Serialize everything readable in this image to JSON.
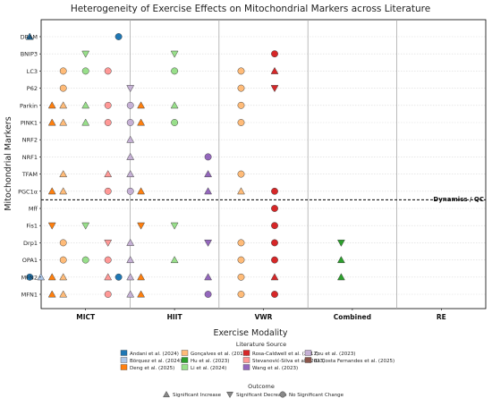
{
  "chart_data": {
    "type": "scatter",
    "title": "Heterogeneity of Exercise Effects on Mitochondrial Markers across Literature",
    "xlabel": "Exercise Modality",
    "ylabel": "Mitochondrial Markers",
    "modalities": [
      "MICT",
      "HIIT",
      "VWR",
      "Combined",
      "RE"
    ],
    "markers": [
      "DRAM",
      "BNIP3",
      "LC3",
      "P62",
      "Parkin",
      "PINK1",
      "NRF2",
      "NRF1",
      "TFAM",
      "PGC1α",
      "Mff",
      "Fis1",
      "Drp1",
      "OPA1",
      "MFN2",
      "MFN1"
    ],
    "divider_label": "Dynamics / QC",
    "studies": [
      {
        "name": "Andani et al. (2024)",
        "color": "#1f77b4"
      },
      {
        "name": "Börquez et al. (2024)",
        "color": "#aec7e8"
      },
      {
        "name": "Deng et al. (2025)",
        "color": "#ff7f0e"
      },
      {
        "name": "Gonçalves et al. (2016)",
        "color": "#ffbb78"
      },
      {
        "name": "Hu et al. (2023)",
        "color": "#2ca02c"
      },
      {
        "name": "Li et al. (2024)",
        "color": "#98df8a"
      },
      {
        "name": "Rosa-Caldwell et al. (2017)",
        "color": "#d62728"
      },
      {
        "name": "Stevanović-Silva et al. (2023)",
        "color": "#ff9896"
      },
      {
        "name": "Wang et al. (2023)",
        "color": "#9467bd"
      },
      {
        "name": "Zou et al. (2023)",
        "color": "#c5b0d5"
      },
      {
        "name": "da Costa Fernandes et al. (2025)",
        "color": "#8c564b"
      }
    ],
    "legend_title": "Literature Source",
    "outcome_title": "Outcome",
    "outcomes": [
      "Significant Increase",
      "Significant Decrease",
      "No Significant Change"
    ],
    "points": [
      {
        "marker": "DRAM",
        "modality": "MICT",
        "study": "Andani et al. (2024)",
        "outcome": "Significant Increase"
      },
      {
        "marker": "DRAM",
        "modality": "HIIT",
        "study": "Andani et al. (2024)",
        "outcome": "No Significant Change"
      },
      {
        "marker": "BNIP3",
        "modality": "MICT",
        "study": "Li et al. (2024)",
        "outcome": "Significant Decrease"
      },
      {
        "marker": "BNIP3",
        "modality": "HIIT",
        "study": "Li et al. (2024)",
        "outcome": "Significant Decrease"
      },
      {
        "marker": "BNIP3",
        "modality": "VWR",
        "study": "Rosa-Caldwell et al. (2017)",
        "outcome": "No Significant Change"
      },
      {
        "marker": "LC3",
        "modality": "MICT",
        "study": "Gonçalves et al. (2016)",
        "outcome": "No Significant Change"
      },
      {
        "marker": "LC3",
        "modality": "MICT",
        "study": "Li et al. (2024)",
        "outcome": "No Significant Change"
      },
      {
        "marker": "LC3",
        "modality": "MICT",
        "study": "Stevanović-Silva et al. (2023)",
        "outcome": "No Significant Change"
      },
      {
        "marker": "LC3",
        "modality": "HIIT",
        "study": "Li et al. (2024)",
        "outcome": "No Significant Change"
      },
      {
        "marker": "LC3",
        "modality": "VWR",
        "study": "Gonçalves et al. (2016)",
        "outcome": "No Significant Change"
      },
      {
        "marker": "LC3",
        "modality": "VWR",
        "study": "Rosa-Caldwell et al. (2017)",
        "outcome": "Significant Increase"
      },
      {
        "marker": "P62",
        "modality": "MICT",
        "study": "Gonçalves et al. (2016)",
        "outcome": "No Significant Change"
      },
      {
        "marker": "P62",
        "modality": "MICT",
        "study": "Zou et al. (2023)",
        "outcome": "Significant Decrease"
      },
      {
        "marker": "P62",
        "modality": "VWR",
        "study": "Gonçalves et al. (2016)",
        "outcome": "No Significant Change"
      },
      {
        "marker": "P62",
        "modality": "VWR",
        "study": "Rosa-Caldwell et al. (2017)",
        "outcome": "Significant Decrease"
      },
      {
        "marker": "Parkin",
        "modality": "MICT",
        "study": "Deng et al. (2025)",
        "outcome": "Significant Increase"
      },
      {
        "marker": "Parkin",
        "modality": "MICT",
        "study": "Gonçalves et al. (2016)",
        "outcome": "Significant Increase"
      },
      {
        "marker": "Parkin",
        "modality": "MICT",
        "study": "Li et al. (2024)",
        "outcome": "Significant Increase"
      },
      {
        "marker": "Parkin",
        "modality": "MICT",
        "study": "Stevanović-Silva et al. (2023)",
        "outcome": "No Significant Change"
      },
      {
        "marker": "Parkin",
        "modality": "MICT",
        "study": "Zou et al. (2023)",
        "outcome": "No Significant Change"
      },
      {
        "marker": "Parkin",
        "modality": "HIIT",
        "study": "Deng et al. (2025)",
        "outcome": "Significant Increase"
      },
      {
        "marker": "Parkin",
        "modality": "HIIT",
        "study": "Li et al. (2024)",
        "outcome": "Significant Increase"
      },
      {
        "marker": "Parkin",
        "modality": "VWR",
        "study": "Gonçalves et al. (2016)",
        "outcome": "No Significant Change"
      },
      {
        "marker": "PINK1",
        "modality": "MICT",
        "study": "Deng et al. (2025)",
        "outcome": "Significant Increase"
      },
      {
        "marker": "PINK1",
        "modality": "MICT",
        "study": "Gonçalves et al. (2016)",
        "outcome": "Significant Increase"
      },
      {
        "marker": "PINK1",
        "modality": "MICT",
        "study": "Li et al. (2024)",
        "outcome": "Significant Increase"
      },
      {
        "marker": "PINK1",
        "modality": "MICT",
        "study": "Stevanović-Silva et al. (2023)",
        "outcome": "No Significant Change"
      },
      {
        "marker": "PINK1",
        "modality": "MICT",
        "study": "Zou et al. (2023)",
        "outcome": "No Significant Change"
      },
      {
        "marker": "PINK1",
        "modality": "HIIT",
        "study": "Deng et al. (2025)",
        "outcome": "Significant Increase"
      },
      {
        "marker": "PINK1",
        "modality": "HIIT",
        "study": "Li et al. (2024)",
        "outcome": "No Significant Change"
      },
      {
        "marker": "PINK1",
        "modality": "VWR",
        "study": "Gonçalves et al. (2016)",
        "outcome": "No Significant Change"
      },
      {
        "marker": "NRF2",
        "modality": "MICT",
        "study": "Zou et al. (2023)",
        "outcome": "Significant Increase"
      },
      {
        "marker": "NRF2",
        "modality": "RE",
        "study": "da Costa Fernandes et al. (2025)",
        "outcome": "Significant Decrease"
      },
      {
        "marker": "NRF1",
        "modality": "MICT",
        "study": "Zou et al. (2023)",
        "outcome": "Significant Increase"
      },
      {
        "marker": "NRF1",
        "modality": "HIIT",
        "study": "Wang et al. (2023)",
        "outcome": "No Significant Change"
      },
      {
        "marker": "NRF1",
        "modality": "RE",
        "study": "da Costa Fernandes et al. (2025)",
        "outcome": "Significant Decrease"
      },
      {
        "marker": "TFAM",
        "modality": "MICT",
        "study": "Gonçalves et al. (2016)",
        "outcome": "Significant Increase"
      },
      {
        "marker": "TFAM",
        "modality": "MICT",
        "study": "Stevanović-Silva et al. (2023)",
        "outcome": "Significant Increase"
      },
      {
        "marker": "TFAM",
        "modality": "MICT",
        "study": "Zou et al. (2023)",
        "outcome": "Significant Increase"
      },
      {
        "marker": "TFAM",
        "modality": "HIIT",
        "study": "Wang et al. (2023)",
        "outcome": "Significant Increase"
      },
      {
        "marker": "TFAM",
        "modality": "VWR",
        "study": "Gonçalves et al. (2016)",
        "outcome": "No Significant Change"
      },
      {
        "marker": "TFAM",
        "modality": "RE",
        "study": "da Costa Fernandes et al. (2025)",
        "outcome": "Significant Decrease"
      },
      {
        "marker": "PGC1α",
        "modality": "MICT",
        "study": "Deng et al. (2025)",
        "outcome": "Significant Increase"
      },
      {
        "marker": "PGC1α",
        "modality": "MICT",
        "study": "Gonçalves et al. (2016)",
        "outcome": "Significant Increase"
      },
      {
        "marker": "PGC1α",
        "modality": "MICT",
        "study": "Stevanović-Silva et al. (2023)",
        "outcome": "No Significant Change"
      },
      {
        "marker": "PGC1α",
        "modality": "MICT",
        "study": "Zou et al. (2023)",
        "outcome": "No Significant Change"
      },
      {
        "marker": "PGC1α",
        "modality": "HIIT",
        "study": "Deng et al. (2025)",
        "outcome": "Significant Increase"
      },
      {
        "marker": "PGC1α",
        "modality": "HIIT",
        "study": "Wang et al. (2023)",
        "outcome": "Significant Increase"
      },
      {
        "marker": "PGC1α",
        "modality": "VWR",
        "study": "Gonçalves et al. (2016)",
        "outcome": "Significant Increase"
      },
      {
        "marker": "PGC1α",
        "modality": "VWR",
        "study": "Rosa-Caldwell et al. (2017)",
        "outcome": "No Significant Change"
      },
      {
        "marker": "PGC1α",
        "modality": "RE",
        "study": "da Costa Fernandes et al. (2025)",
        "outcome": "Significant Decrease"
      },
      {
        "marker": "Mff",
        "modality": "VWR",
        "study": "Rosa-Caldwell et al. (2017)",
        "outcome": "No Significant Change"
      },
      {
        "marker": "Fis1",
        "modality": "MICT",
        "study": "Deng et al. (2025)",
        "outcome": "Significant Decrease"
      },
      {
        "marker": "Fis1",
        "modality": "MICT",
        "study": "Li et al. (2024)",
        "outcome": "Significant Decrease"
      },
      {
        "marker": "Fis1",
        "modality": "HIIT",
        "study": "Deng et al. (2025)",
        "outcome": "Significant Decrease"
      },
      {
        "marker": "Fis1",
        "modality": "HIIT",
        "study": "Li et al. (2024)",
        "outcome": "Significant Decrease"
      },
      {
        "marker": "Fis1",
        "modality": "VWR",
        "study": "Rosa-Caldwell et al. (2017)",
        "outcome": "No Significant Change"
      },
      {
        "marker": "Fis1",
        "modality": "RE",
        "study": "da Costa Fernandes et al. (2025)",
        "outcome": "Significant Decrease"
      },
      {
        "marker": "Drp1",
        "modality": "MICT",
        "study": "Gonçalves et al. (2016)",
        "outcome": "No Significant Change"
      },
      {
        "marker": "Drp1",
        "modality": "MICT",
        "study": "Stevanović-Silva et al. (2023)",
        "outcome": "Significant Decrease"
      },
      {
        "marker": "Drp1",
        "modality": "MICT",
        "study": "Zou et al. (2023)",
        "outcome": "Significant Increase"
      },
      {
        "marker": "Drp1",
        "modality": "HIIT",
        "study": "Wang et al. (2023)",
        "outcome": "Significant Decrease"
      },
      {
        "marker": "Drp1",
        "modality": "VWR",
        "study": "Gonçalves et al. (2016)",
        "outcome": "No Significant Change"
      },
      {
        "marker": "Drp1",
        "modality": "VWR",
        "study": "Rosa-Caldwell et al. (2017)",
        "outcome": "No Significant Change"
      },
      {
        "marker": "Drp1",
        "modality": "Combined",
        "study": "Hu et al. (2023)",
        "outcome": "Significant Decrease"
      },
      {
        "marker": "Drp1",
        "modality": "RE",
        "study": "da Costa Fernandes et al. (2025)",
        "outcome": "Significant Decrease"
      },
      {
        "marker": "OPA1",
        "modality": "MICT",
        "study": "Gonçalves et al. (2016)",
        "outcome": "No Significant Change"
      },
      {
        "marker": "OPA1",
        "modality": "MICT",
        "study": "Li et al. (2024)",
        "outcome": "No Significant Change"
      },
      {
        "marker": "OPA1",
        "modality": "MICT",
        "study": "Stevanović-Silva et al. (2023)",
        "outcome": "No Significant Change"
      },
      {
        "marker": "OPA1",
        "modality": "MICT",
        "study": "Zou et al. (2023)",
        "outcome": "Significant Increase"
      },
      {
        "marker": "OPA1",
        "modality": "HIIT",
        "study": "Li et al. (2024)",
        "outcome": "Significant Increase"
      },
      {
        "marker": "OPA1",
        "modality": "VWR",
        "study": "Gonçalves et al. (2016)",
        "outcome": "No Significant Change"
      },
      {
        "marker": "OPA1",
        "modality": "VWR",
        "study": "Rosa-Caldwell et al. (2017)",
        "outcome": "No Significant Change"
      },
      {
        "marker": "OPA1",
        "modality": "Combined",
        "study": "Hu et al. (2023)",
        "outcome": "Significant Increase"
      },
      {
        "marker": "MFN2",
        "modality": "MICT",
        "study": "Andani et al. (2024)",
        "outcome": "No Significant Change"
      },
      {
        "marker": "MFN2",
        "modality": "MICT",
        "study": "Börquez et al. (2024)",
        "outcome": "Significant Increase"
      },
      {
        "marker": "MFN2",
        "modality": "MICT",
        "study": "Deng et al. (2025)",
        "outcome": "Significant Increase"
      },
      {
        "marker": "MFN2",
        "modality": "MICT",
        "study": "Gonçalves et al. (2016)",
        "outcome": "Significant Increase"
      },
      {
        "marker": "MFN2",
        "modality": "MICT",
        "study": "Stevanović-Silva et al. (2023)",
        "outcome": "Significant Increase"
      },
      {
        "marker": "MFN2",
        "modality": "MICT",
        "study": "Zou et al. (2023)",
        "outcome": "Significant Increase"
      },
      {
        "marker": "MFN2",
        "modality": "HIIT",
        "study": "Andani et al. (2024)",
        "outcome": "No Significant Change"
      },
      {
        "marker": "MFN2",
        "modality": "HIIT",
        "study": "Deng et al. (2025)",
        "outcome": "Significant Increase"
      },
      {
        "marker": "MFN2",
        "modality": "HIIT",
        "study": "Wang et al. (2023)",
        "outcome": "Significant Increase"
      },
      {
        "marker": "MFN2",
        "modality": "VWR",
        "study": "Gonçalves et al. (2016)",
        "outcome": "No Significant Change"
      },
      {
        "marker": "MFN2",
        "modality": "VWR",
        "study": "Rosa-Caldwell et al. (2017)",
        "outcome": "Significant Increase"
      },
      {
        "marker": "MFN2",
        "modality": "Combined",
        "study": "Hu et al. (2023)",
        "outcome": "Significant Increase"
      },
      {
        "marker": "MFN2",
        "modality": "RE",
        "study": "da Costa Fernandes et al. (2025)",
        "outcome": "Significant Decrease"
      },
      {
        "marker": "MFN1",
        "modality": "MICT",
        "study": "Deng et al. (2025)",
        "outcome": "Significant Increase"
      },
      {
        "marker": "MFN1",
        "modality": "MICT",
        "study": "Gonçalves et al. (2016)",
        "outcome": "Significant Increase"
      },
      {
        "marker": "MFN1",
        "modality": "MICT",
        "study": "Stevanović-Silva et al. (2023)",
        "outcome": "No Significant Change"
      },
      {
        "marker": "MFN1",
        "modality": "MICT",
        "study": "Zou et al. (2023)",
        "outcome": "Significant Increase"
      },
      {
        "marker": "MFN1",
        "modality": "HIIT",
        "study": "Deng et al. (2025)",
        "outcome": "Significant Increase"
      },
      {
        "marker": "MFN1",
        "modality": "HIIT",
        "study": "Wang et al. (2023)",
        "outcome": "No Significant Change"
      },
      {
        "marker": "MFN1",
        "modality": "VWR",
        "study": "Gonçalves et al. (2016)",
        "outcome": "No Significant Change"
      },
      {
        "marker": "MFN1",
        "modality": "VWR",
        "study": "Rosa-Caldwell et al. (2017)",
        "outcome": "No Significant Change"
      },
      {
        "marker": "MFN1",
        "modality": "RE",
        "study": "da Costa Fernandes et al. (2025)",
        "outcome": "Significant Decrease"
      }
    ]
  }
}
